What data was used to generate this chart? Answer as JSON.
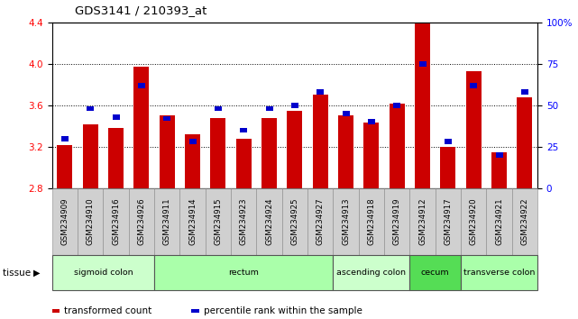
{
  "title": "GDS3141 / 210393_at",
  "samples": [
    "GSM234909",
    "GSM234910",
    "GSM234916",
    "GSM234926",
    "GSM234911",
    "GSM234914",
    "GSM234915",
    "GSM234923",
    "GSM234924",
    "GSM234925",
    "GSM234927",
    "GSM234913",
    "GSM234918",
    "GSM234919",
    "GSM234912",
    "GSM234917",
    "GSM234920",
    "GSM234921",
    "GSM234922"
  ],
  "red_values": [
    3.22,
    3.42,
    3.38,
    3.97,
    3.5,
    3.32,
    3.48,
    3.28,
    3.48,
    3.55,
    3.7,
    3.5,
    3.43,
    3.62,
    4.4,
    3.2,
    3.93,
    3.15,
    3.68
  ],
  "blue_percentiles": [
    30,
    48,
    43,
    62,
    42,
    28,
    48,
    35,
    48,
    50,
    58,
    45,
    40,
    50,
    75,
    28,
    62,
    20,
    58
  ],
  "tissue_groups": [
    {
      "label": "sigmoid colon",
      "start": 0,
      "end": 3,
      "color": "#ccffcc"
    },
    {
      "label": "rectum",
      "start": 4,
      "end": 10,
      "color": "#aaffaa"
    },
    {
      "label": "ascending colon",
      "start": 11,
      "end": 13,
      "color": "#ccffcc"
    },
    {
      "label": "cecum",
      "start": 14,
      "end": 15,
      "color": "#55dd55"
    },
    {
      "label": "transverse colon",
      "start": 16,
      "end": 18,
      "color": "#aaffaa"
    }
  ],
  "ylim_left": [
    2.8,
    4.4
  ],
  "ylim_right": [
    0,
    100
  ],
  "yticks_left": [
    2.8,
    3.2,
    3.6,
    4.0,
    4.4
  ],
  "yticks_right": [
    0,
    25,
    50,
    75,
    100
  ],
  "ytick_labels_right": [
    "0",
    "25",
    "50",
    "75",
    "100%"
  ],
  "grid_values": [
    3.2,
    3.6,
    4.0
  ],
  "bar_color": "#cc0000",
  "blue_color": "#0000cc",
  "bar_width": 0.6,
  "legend_items": [
    {
      "color": "#cc0000",
      "label": "transformed count"
    },
    {
      "color": "#0000cc",
      "label": "percentile rank within the sample"
    }
  ],
  "bg_color": "#ffffff",
  "plot_bg": "#ffffff",
  "tick_label_bg": "#d0d0d0"
}
